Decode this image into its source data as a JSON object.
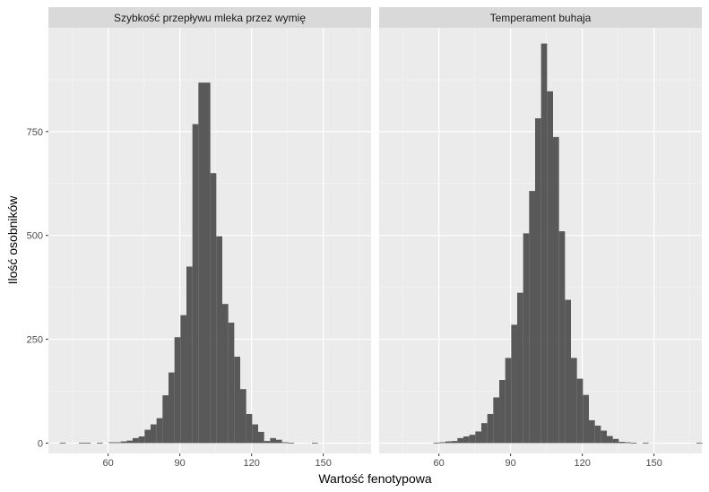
{
  "chart_data": {
    "type": "bar",
    "subtype": "faceted-histogram",
    "xlabel": "Wartość fenotypowa",
    "ylabel": "Ilość osobników",
    "xlim": [
      35,
      170
    ],
    "ylim": [
      -25,
      1000
    ],
    "x_ticks": [
      60,
      90,
      120,
      150
    ],
    "y_ticks": [
      0,
      250,
      500,
      750
    ],
    "bin_width": 2.5,
    "grid": true,
    "legend": "none",
    "bar_color": "#595959",
    "panel_bg": "#ebebeb",
    "strip_bg": "#d9d9d9",
    "panels": [
      {
        "title": "Szybkość przepływu mleka przez wymię",
        "bins": [
          {
            "x": 41,
            "count": 1
          },
          {
            "x": 49,
            "count": 1
          },
          {
            "x": 51.5,
            "count": 1
          },
          {
            "x": 56.5,
            "count": 1
          },
          {
            "x": 61.5,
            "count": 2
          },
          {
            "x": 64,
            "count": 2
          },
          {
            "x": 66.5,
            "count": 4
          },
          {
            "x": 69,
            "count": 6
          },
          {
            "x": 71.5,
            "count": 12
          },
          {
            "x": 74,
            "count": 16
          },
          {
            "x": 76.5,
            "count": 32
          },
          {
            "x": 79,
            "count": 45
          },
          {
            "x": 81.5,
            "count": 60
          },
          {
            "x": 84,
            "count": 115
          },
          {
            "x": 86.5,
            "count": 170
          },
          {
            "x": 89,
            "count": 255
          },
          {
            "x": 91.5,
            "count": 308
          },
          {
            "x": 94,
            "count": 425
          },
          {
            "x": 96.5,
            "count": 768
          },
          {
            "x": 99,
            "count": 868
          },
          {
            "x": 101.5,
            "count": 868
          },
          {
            "x": 104,
            "count": 650
          },
          {
            "x": 106.5,
            "count": 498
          },
          {
            "x": 109,
            "count": 335
          },
          {
            "x": 111.5,
            "count": 290
          },
          {
            "x": 114,
            "count": 208
          },
          {
            "x": 116.5,
            "count": 130
          },
          {
            "x": 119,
            "count": 70
          },
          {
            "x": 121.5,
            "count": 45
          },
          {
            "x": 124,
            "count": 27
          },
          {
            "x": 126.5,
            "count": 5
          },
          {
            "x": 129,
            "count": 12
          },
          {
            "x": 131.5,
            "count": 8
          },
          {
            "x": 134,
            "count": 2
          },
          {
            "x": 136.5,
            "count": 1
          },
          {
            "x": 146.5,
            "count": 1
          }
        ]
      },
      {
        "title": "Temperament buhaja",
        "bins": [
          {
            "x": 59,
            "count": 1
          },
          {
            "x": 61.5,
            "count": 2
          },
          {
            "x": 64,
            "count": 4
          },
          {
            "x": 66.5,
            "count": 5
          },
          {
            "x": 69,
            "count": 12
          },
          {
            "x": 71.5,
            "count": 16
          },
          {
            "x": 74,
            "count": 20
          },
          {
            "x": 76.5,
            "count": 28
          },
          {
            "x": 79,
            "count": 48
          },
          {
            "x": 81.5,
            "count": 70
          },
          {
            "x": 84,
            "count": 110
          },
          {
            "x": 86.5,
            "count": 152
          },
          {
            "x": 89,
            "count": 205
          },
          {
            "x": 91.5,
            "count": 285
          },
          {
            "x": 94,
            "count": 362
          },
          {
            "x": 96.5,
            "count": 505
          },
          {
            "x": 99,
            "count": 607
          },
          {
            "x": 101.5,
            "count": 782
          },
          {
            "x": 104,
            "count": 962
          },
          {
            "x": 106.5,
            "count": 847
          },
          {
            "x": 109,
            "count": 737
          },
          {
            "x": 111.5,
            "count": 510
          },
          {
            "x": 114,
            "count": 345
          },
          {
            "x": 116.5,
            "count": 205
          },
          {
            "x": 119,
            "count": 155
          },
          {
            "x": 121.5,
            "count": 116
          },
          {
            "x": 124,
            "count": 55
          },
          {
            "x": 126.5,
            "count": 42
          },
          {
            "x": 129,
            "count": 30
          },
          {
            "x": 131.5,
            "count": 17
          },
          {
            "x": 134,
            "count": 10
          },
          {
            "x": 136.5,
            "count": 3
          },
          {
            "x": 139,
            "count": 2
          },
          {
            "x": 141.5,
            "count": 1
          },
          {
            "x": 146.5,
            "count": 1
          },
          {
            "x": 169,
            "count": 1
          }
        ]
      }
    ]
  }
}
